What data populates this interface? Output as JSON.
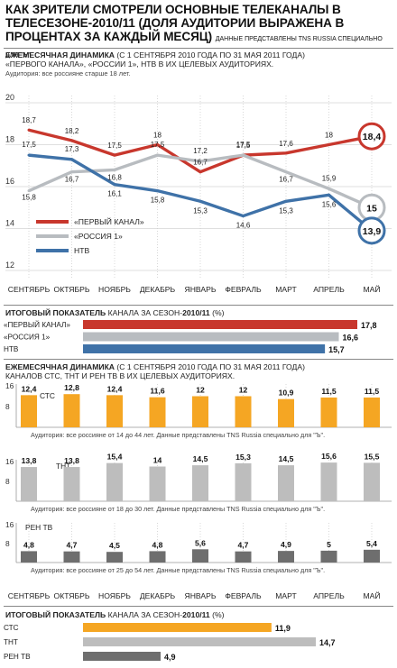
{
  "header": {
    "title": "Как зрители смотрели основные телеканалы в телесезоне-2010/11 (доля аудитории выражена в процентах за каждый месяц)",
    "source_note": "Данные представлены TNS Russia специально для \"Ъ\"."
  },
  "section1": {
    "heading_bold": "Ежемесячная динамика",
    "heading_rest": "(с 1 сентября 2010 года по 31 мая 2011 года)",
    "subheading": "«Первого канала», «России 1», НТВ в их целевых аудиториях.",
    "audience": "Аудитория: все россияне старше 18 лет."
  },
  "section2": {
    "heading_bold": "Итоговый показатель",
    "heading_rest": "канала за сезон-",
    "heading_bold2": "2010/11",
    "heading_unit": "(%)"
  },
  "section3": {
    "heading_bold": "Ежемесячная динамика",
    "heading_rest": "(с 1 сентября 2010 года по 31 мая 2011 года)",
    "subheading": "каналов СТС, ТНТ и РЕН ТВ в их целевых аудиториях.",
    "audiences": [
      "Аудитория: все россияне от 14 до 44 лет. Данные представлены TNS Russia специально для \"Ъ\".",
      "Аудитория: все россияне от 18 до 30 лет. Данные представлены TNS Russia специально для \"Ъ\".",
      "Аудитория: все россияне от 25 до 54 лет. Данные представлены TNS Russia специально для \"Ъ\"."
    ]
  },
  "section4": {
    "heading_bold": "Итоговый показатель",
    "heading_rest": "канала за сезон-",
    "heading_bold2": "2010/11",
    "heading_unit": "(%)"
  },
  "colors": {
    "perviy": "#c8372d",
    "rossiya": "#b8bcc0",
    "ntv": "#3f72a8",
    "sts": "#f5a623",
    "tnt": "#bdbdbd",
    "ren": "#6e6e6e"
  },
  "chart_data": [
    {
      "type": "line",
      "categories": [
        "Сентябрь",
        "Октябрь",
        "Ноябрь",
        "Декабрь",
        "Январь",
        "Февраль",
        "Март",
        "Апрель",
        "Май"
      ],
      "ylim": [
        12,
        20
      ],
      "yticks": [
        "12",
        "14",
        "16",
        "18",
        "20"
      ],
      "series": [
        {
          "name": "«Первый канал»",
          "values": [
            18.7,
            18.2,
            17.5,
            18,
            16.7,
            17.5,
            17.6,
            18,
            18.4
          ],
          "labels": [
            "18,7",
            "18,2",
            "17,5",
            "18",
            "16,7",
            "17,5",
            "17,6",
            "18",
            "18,4"
          ]
        },
        {
          "name": "«Россия 1»",
          "values": [
            15.8,
            16.7,
            16.8,
            17.5,
            17.2,
            17.5,
            16.7,
            15.9,
            15
          ],
          "labels": [
            "15,8",
            "16,7",
            "16,8",
            "17,5",
            "17,2",
            "17,5",
            "16,7",
            "15,9",
            "15"
          ]
        },
        {
          "name": "НТВ",
          "values": [
            17.5,
            17.3,
            16.1,
            15.8,
            15.3,
            14.6,
            15.3,
            15.6,
            13.9
          ],
          "labels": [
            "17,5",
            "17,3",
            "16,1",
            "15,8",
            "15,3",
            "14,6",
            "15,3",
            "15,6",
            "13,9"
          ]
        }
      ]
    },
    {
      "type": "bar",
      "categories": [
        "«Первый канал»",
        "«Россия 1»",
        "НТВ"
      ],
      "values": [
        17.8,
        16.6,
        15.7
      ],
      "labels": [
        "17,8",
        "16,6",
        "15,7"
      ]
    },
    {
      "type": "bar",
      "categories": [
        "Сентябрь",
        "Октябрь",
        "Ноябрь",
        "Декабрь",
        "Январь",
        "Февраль",
        "Март",
        "Апрель",
        "Май"
      ],
      "series": [
        {
          "name": "СТС",
          "values": [
            12.4,
            12.8,
            12.4,
            11.6,
            12,
            12,
            10.9,
            11.5,
            11.5
          ],
          "labels": [
            "12,4",
            "12,8",
            "12,4",
            "11,6",
            "12",
            "12",
            "10,9",
            "11,5",
            "11,5"
          ],
          "yticks": [
            "8",
            "16"
          ],
          "ylim": [
            0,
            16
          ]
        },
        {
          "name": "ТНТ",
          "values": [
            13.8,
            13.8,
            15.4,
            14,
            14.5,
            15.3,
            14.5,
            15.6,
            15.5
          ],
          "labels": [
            "13,8",
            "13,8",
            "15,4",
            "14",
            "14,5",
            "15,3",
            "14,5",
            "15,6",
            "15,5"
          ],
          "yticks": [
            "8",
            "16"
          ],
          "ylim": [
            0,
            16
          ]
        },
        {
          "name": "РЕН ТВ",
          "values": [
            4.8,
            4.7,
            4.5,
            4.8,
            5.6,
            4.7,
            4.9,
            5,
            5.4
          ],
          "labels": [
            "4,8",
            "4,7",
            "4,5",
            "4,8",
            "5,6",
            "4,7",
            "4,9",
            "5",
            "5,4"
          ],
          "yticks": [
            "8",
            "16"
          ],
          "ylim": [
            0,
            16
          ]
        }
      ]
    },
    {
      "type": "bar",
      "categories": [
        "СТС",
        "ТНТ",
        "РЕН ТВ"
      ],
      "values": [
        11.9,
        14.7,
        4.9
      ],
      "labels": [
        "11,9",
        "14,7",
        "4,9"
      ]
    }
  ]
}
